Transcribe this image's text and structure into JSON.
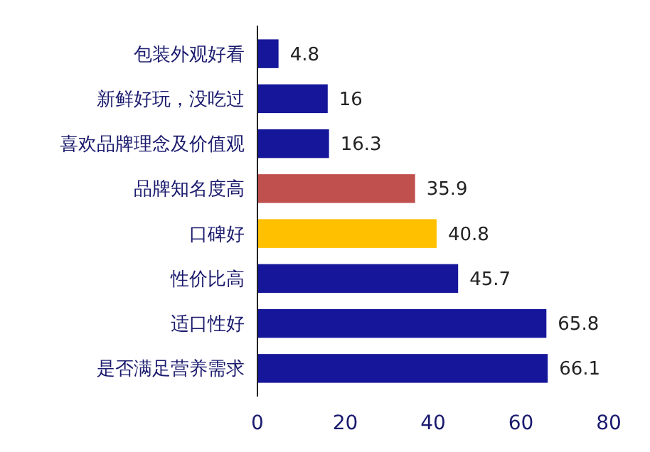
{
  "chart_data": {
    "type": "bar",
    "orientation": "horizontal",
    "categories": [
      "包装外观好看",
      "新鲜好玩，没吃过",
      "喜欢品牌理念及价值观",
      "品牌知名度高",
      "口碑好",
      "性价比高",
      "适口性好",
      "是否满足营养需求"
    ],
    "values": [
      4.8,
      16,
      16.3,
      35.9,
      40.8,
      45.7,
      65.8,
      66.1
    ],
    "colors": [
      "#16169a",
      "#16169a",
      "#16169a",
      "#c0504d",
      "#ffc000",
      "#16169a",
      "#16169a",
      "#16169a"
    ],
    "xlim": [
      0,
      80
    ],
    "xticks": [
      0,
      20,
      40,
      60,
      80
    ],
    "data_labels": true
  }
}
